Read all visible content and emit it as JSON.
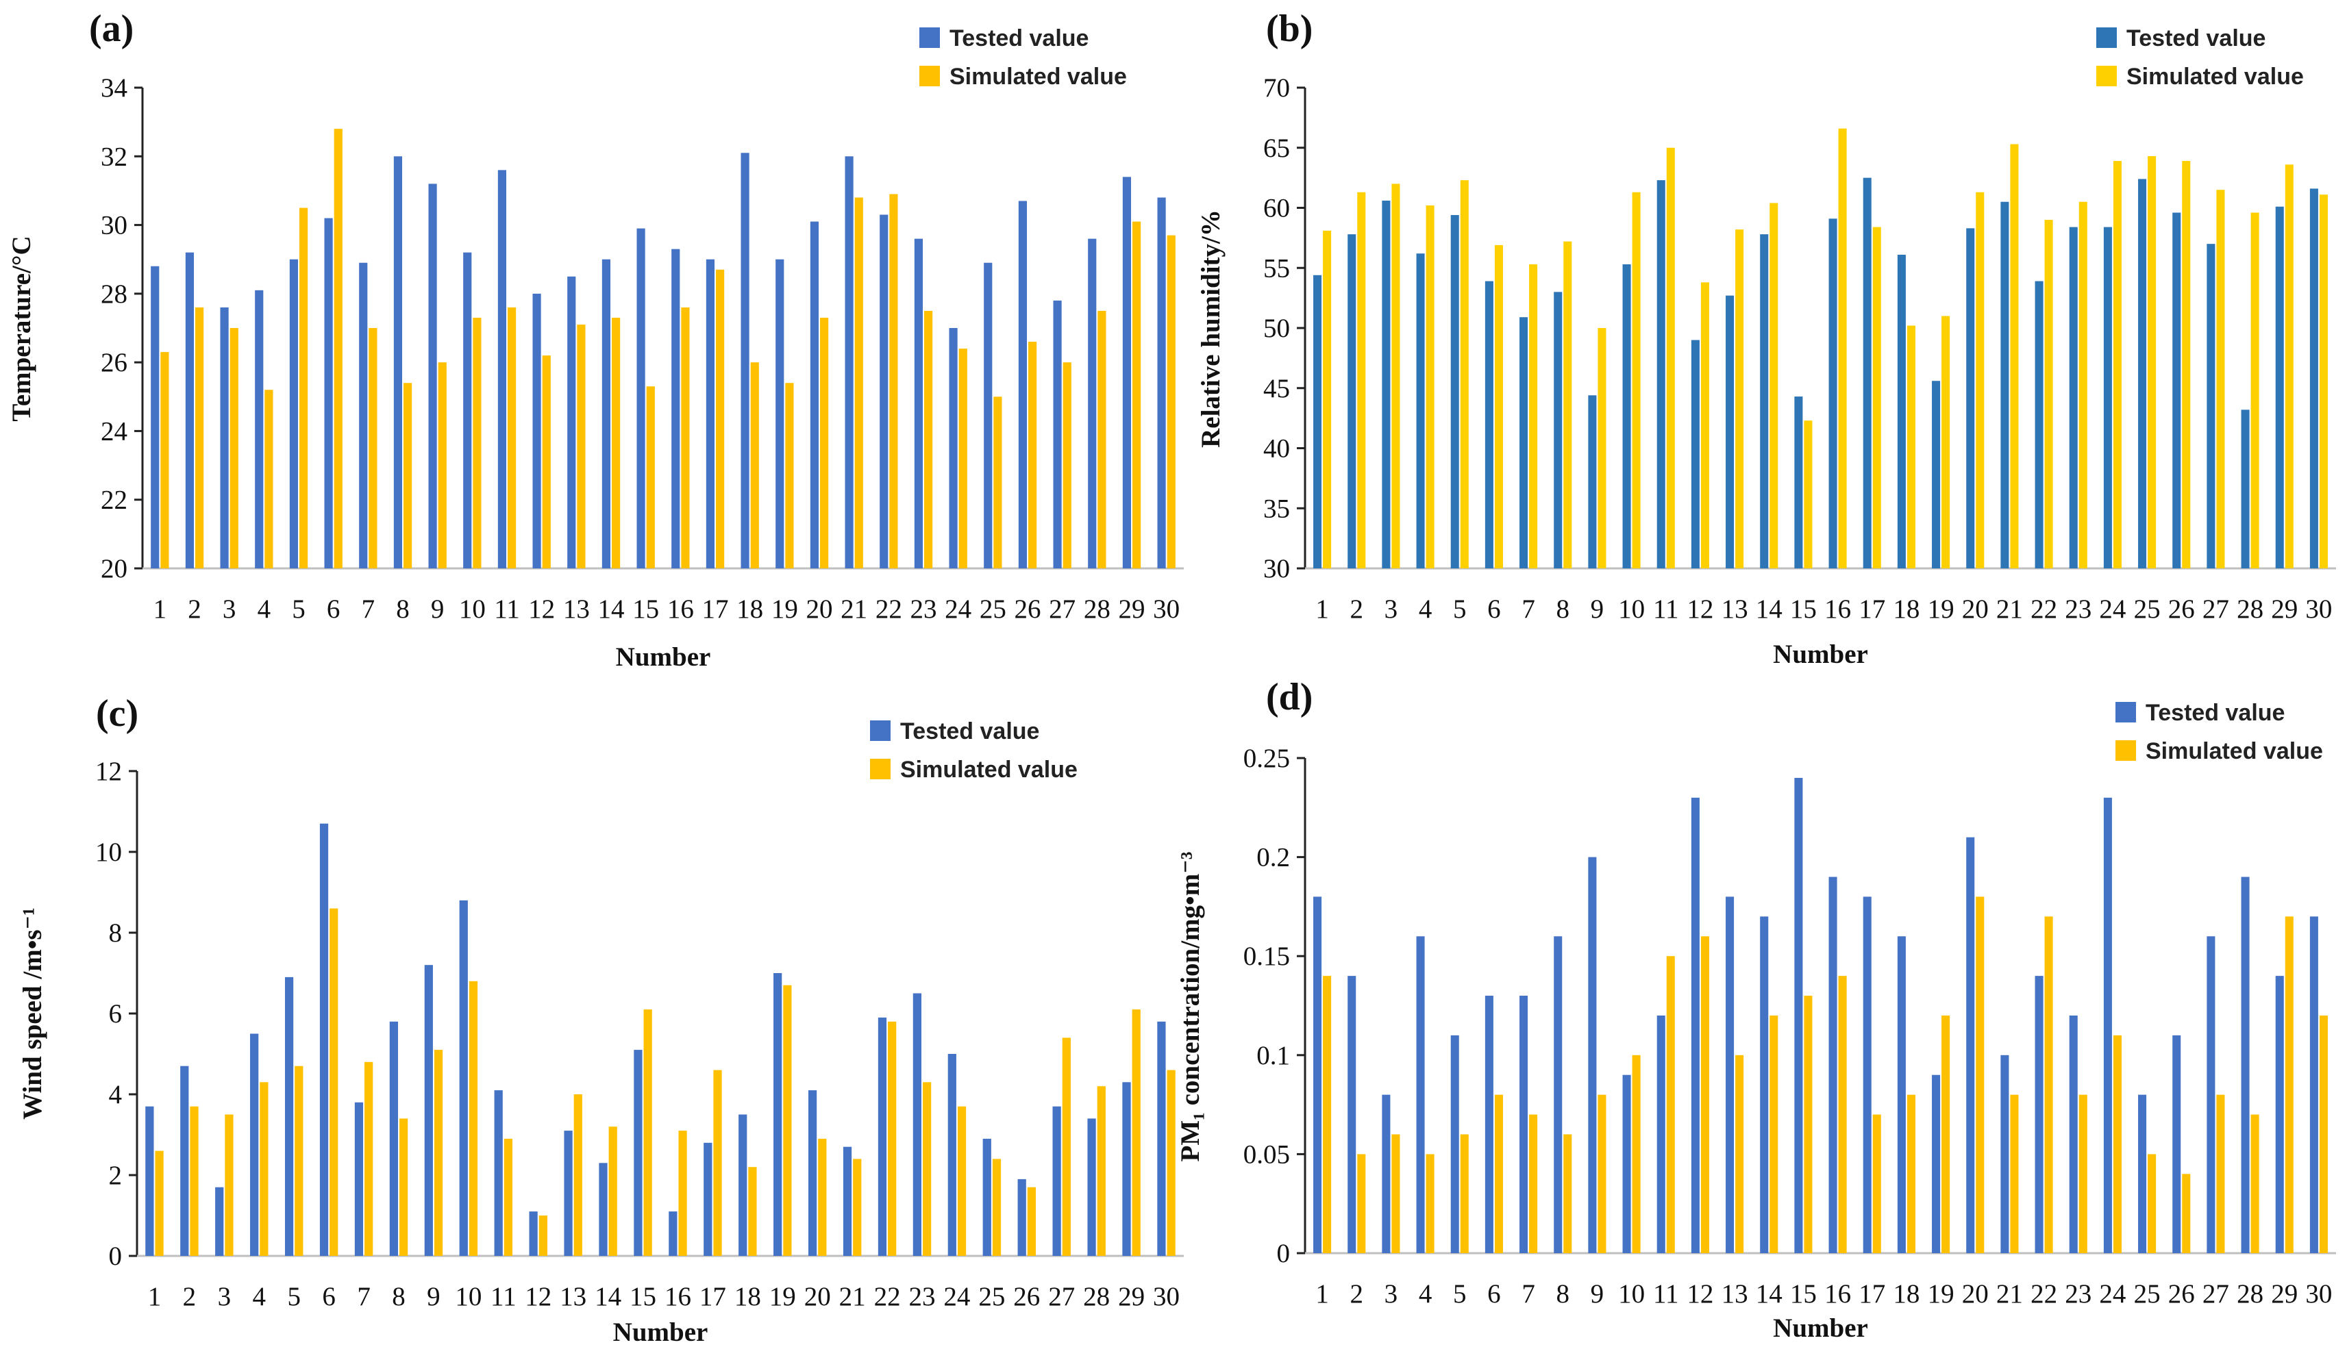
{
  "chart_data": [
    {
      "id": "a",
      "panel_label": "(a)",
      "type": "bar",
      "title": "",
      "categories": [
        "1",
        "2",
        "3",
        "4",
        "5",
        "6",
        "7",
        "8",
        "9",
        "10",
        "11",
        "12",
        "13",
        "14",
        "15",
        "16",
        "17",
        "18",
        "19",
        "20",
        "21",
        "22",
        "23",
        "24",
        "25",
        "26",
        "27",
        "28",
        "29",
        "30"
      ],
      "series": [
        {
          "name": "Tested value",
          "color": "#4472C4",
          "values": [
            28.8,
            29.2,
            27.6,
            28.1,
            29.0,
            30.2,
            28.9,
            32.0,
            31.2,
            29.2,
            31.6,
            28.0,
            28.5,
            29.0,
            29.9,
            29.3,
            29.0,
            32.1,
            29.0,
            30.1,
            32.0,
            30.3,
            29.6,
            27.0,
            28.9,
            30.7,
            27.8,
            29.6,
            31.4,
            30.8
          ]
        },
        {
          "name": "Simulated value",
          "color": "#FFC000",
          "values": [
            26.3,
            27.6,
            27.0,
            25.2,
            30.5,
            32.8,
            27.0,
            25.4,
            26.0,
            27.3,
            27.6,
            26.2,
            27.1,
            27.3,
            25.3,
            27.6,
            28.7,
            26.0,
            25.4,
            27.3,
            30.8,
            30.9,
            27.5,
            26.4,
            25.0,
            26.6,
            26.0,
            27.5,
            30.1,
            29.7
          ]
        }
      ],
      "xlabel": "Number",
      "ylabel": "Temperature/°C",
      "ylim": [
        20,
        34
      ],
      "yticks": [
        20,
        22,
        24,
        26,
        28,
        30,
        32,
        34
      ],
      "ytick_labels": [
        "20",
        "22",
        "24",
        "26",
        "28",
        "30",
        "32",
        "34"
      ],
      "legend": "top-right"
    },
    {
      "id": "b",
      "panel_label": "(b)",
      "type": "bar",
      "title": "",
      "categories": [
        "1",
        "2",
        "3",
        "4",
        "5",
        "6",
        "7",
        "8",
        "9",
        "10",
        "11",
        "12",
        "13",
        "14",
        "15",
        "16",
        "17",
        "18",
        "19",
        "20",
        "21",
        "22",
        "23",
        "24",
        "25",
        "26",
        "27",
        "28",
        "29",
        "30"
      ],
      "series": [
        {
          "name": "Tested value",
          "color": "#2E75B6",
          "values": [
            54.4,
            57.8,
            60.6,
            56.2,
            59.4,
            53.9,
            50.9,
            53.0,
            44.4,
            55.3,
            62.3,
            49.0,
            52.7,
            57.8,
            44.3,
            59.1,
            62.5,
            56.1,
            45.6,
            58.3,
            60.5,
            53.9,
            58.4,
            58.4,
            62.4,
            59.6,
            57.0,
            43.2,
            60.1,
            61.6
          ]
        },
        {
          "name": "Simulated value",
          "color": "#FFD000",
          "values": [
            58.1,
            61.3,
            62.0,
            60.2,
            62.3,
            56.9,
            55.3,
            57.2,
            50.0,
            61.3,
            65.0,
            53.8,
            58.2,
            60.4,
            42.3,
            66.6,
            58.4,
            50.2,
            51.0,
            61.3,
            65.3,
            59.0,
            60.5,
            63.9,
            64.3,
            63.9,
            61.5,
            59.6,
            63.6,
            61.1
          ]
        }
      ],
      "xlabel": "Number",
      "ylabel": "Relative humidity/%",
      "ylim": [
        30,
        70
      ],
      "yticks": [
        30,
        35,
        40,
        45,
        50,
        55,
        60,
        65,
        70
      ],
      "ytick_labels": [
        "30",
        "35",
        "40",
        "45",
        "50",
        "55",
        "60",
        "65",
        "70"
      ],
      "legend": "top-right"
    },
    {
      "id": "c",
      "panel_label": "(c)",
      "type": "bar",
      "title": "",
      "categories": [
        "1",
        "2",
        "3",
        "4",
        "5",
        "6",
        "7",
        "8",
        "9",
        "10",
        "11",
        "12",
        "13",
        "14",
        "15",
        "16",
        "17",
        "18",
        "19",
        "20",
        "21",
        "22",
        "23",
        "24",
        "25",
        "26",
        "27",
        "28",
        "29",
        "30"
      ],
      "series": [
        {
          "name": "Tested value",
          "color": "#4472C4",
          "values": [
            3.7,
            4.7,
            1.7,
            5.5,
            6.9,
            10.7,
            3.8,
            5.8,
            7.2,
            8.8,
            4.1,
            1.1,
            3.1,
            2.3,
            5.1,
            1.1,
            2.8,
            3.5,
            7.0,
            4.1,
            2.7,
            5.9,
            6.5,
            5.0,
            2.9,
            1.9,
            3.7,
            3.4,
            4.3,
            5.8
          ]
        },
        {
          "name": "Simulated value",
          "color": "#FFC000",
          "values": [
            2.6,
            3.7,
            3.5,
            4.3,
            4.7,
            8.6,
            4.8,
            3.4,
            5.1,
            6.8,
            2.9,
            1.0,
            4.0,
            3.2,
            6.1,
            3.1,
            4.6,
            2.2,
            6.7,
            2.9,
            2.4,
            5.8,
            4.3,
            3.7,
            2.4,
            1.7,
            5.4,
            4.2,
            6.1,
            4.6
          ]
        }
      ],
      "xlabel": "Number",
      "ylabel": "Wind speed /m•s⁻¹",
      "ylim": [
        0,
        12
      ],
      "yticks": [
        0,
        2,
        4,
        6,
        8,
        10,
        12
      ],
      "ytick_labels": [
        "0",
        "2",
        "4",
        "6",
        "8",
        "10",
        "12"
      ],
      "legend": "top-right"
    },
    {
      "id": "d",
      "panel_label": "(d)",
      "type": "bar",
      "title": "",
      "categories": [
        "1",
        "2",
        "3",
        "4",
        "5",
        "6",
        "7",
        "8",
        "9",
        "10",
        "11",
        "12",
        "13",
        "14",
        "15",
        "16",
        "17",
        "18",
        "19",
        "20",
        "21",
        "22",
        "23",
        "24",
        "25",
        "26",
        "27",
        "28",
        "29",
        "30"
      ],
      "series": [
        {
          "name": "Tested value",
          "color": "#4472C4",
          "values": [
            0.18,
            0.14,
            0.08,
            0.16,
            0.11,
            0.13,
            0.13,
            0.16,
            0.2,
            0.09,
            0.12,
            0.23,
            0.18,
            0.17,
            0.24,
            0.19,
            0.18,
            0.16,
            0.09,
            0.21,
            0.1,
            0.14,
            0.12,
            0.23,
            0.08,
            0.11,
            0.16,
            0.19,
            0.14,
            0.17
          ]
        },
        {
          "name": "Simulated value",
          "color": "#FFC000",
          "values": [
            0.14,
            0.05,
            0.06,
            0.05,
            0.06,
            0.08,
            0.07,
            0.06,
            0.08,
            0.1,
            0.15,
            0.16,
            0.1,
            0.12,
            0.13,
            0.14,
            0.07,
            0.08,
            0.12,
            0.18,
            0.08,
            0.17,
            0.08,
            0.11,
            0.05,
            0.04,
            0.08,
            0.07,
            0.17,
            0.12
          ]
        }
      ],
      "xlabel": "Number",
      "ylabel": "PM₁ concentration/mg•m⁻³",
      "ylim": [
        0,
        0.25
      ],
      "yticks": [
        0,
        0.05,
        0.1,
        0.15,
        0.2,
        0.25
      ],
      "ytick_labels": [
        "0",
        "0.05",
        "0.1",
        "0.15",
        "0.2",
        "0.25"
      ],
      "legend": "top-right"
    }
  ]
}
